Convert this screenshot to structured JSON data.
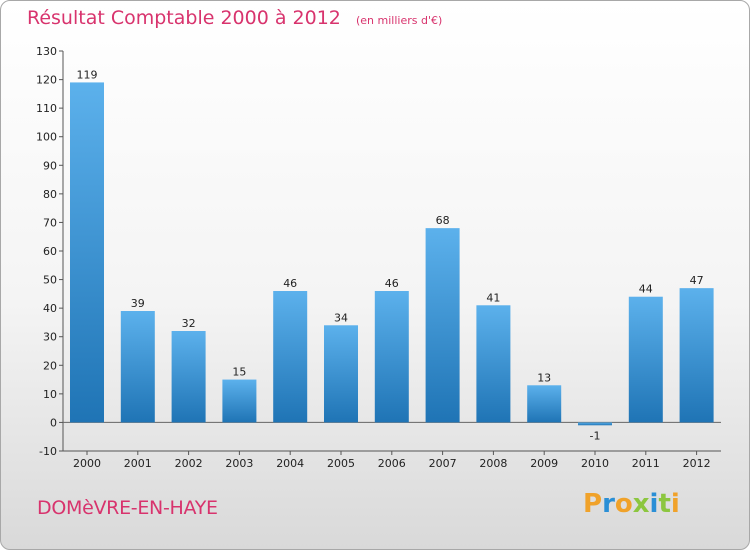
{
  "header": {
    "title": "Résultat Comptable 2000 à 2012",
    "subtitle": "(en milliers d'€)"
  },
  "footer": {
    "place": "DOMèVRE-EN-HAYE",
    "brand": "Proxiti"
  },
  "colors": {
    "title": "#d8336d",
    "bar_top": "#5cb1ec",
    "bar_bottom": "#1f74b5",
    "brand_letters": [
      "#f0a22a",
      "#2a8fd6",
      "#f0a22a",
      "#8cc63f",
      "#2a8fd6",
      "#8cc63f",
      "#f0a22a"
    ]
  },
  "chart_data": {
    "type": "bar",
    "title": "Résultat Comptable 2000 à 2012",
    "subtitle": "(en milliers d'€)",
    "categories": [
      "2000",
      "2001",
      "2002",
      "2003",
      "2004",
      "2005",
      "2006",
      "2007",
      "2008",
      "2009",
      "2010",
      "2011",
      "2012"
    ],
    "values": [
      119,
      39,
      32,
      15,
      46,
      34,
      46,
      68,
      41,
      13,
      -1,
      44,
      47
    ],
    "value_labels": [
      "119",
      "39",
      "32",
      "15",
      "46",
      "34",
      "46",
      "68",
      "41",
      "13",
      "-1",
      "44",
      "47"
    ],
    "ylim": [
      -10,
      130
    ],
    "yticks": [
      -10,
      0,
      10,
      20,
      30,
      40,
      50,
      60,
      70,
      80,
      90,
      100,
      110,
      120,
      130
    ],
    "ytick_labels": [
      "-10",
      "0",
      "10",
      "20",
      "30",
      "40",
      "50",
      "60",
      "70",
      "80",
      "90",
      "100",
      "110",
      "120",
      "130"
    ],
    "grid": false,
    "legend": "none"
  }
}
